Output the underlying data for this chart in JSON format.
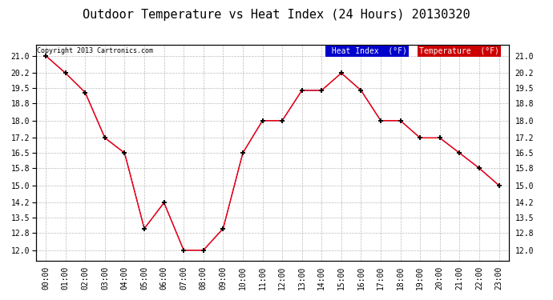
{
  "title": "Outdoor Temperature vs Heat Index (24 Hours) 20130320",
  "copyright": "Copyright 2013 Cartronics.com",
  "x_labels": [
    "00:00",
    "01:00",
    "02:00",
    "03:00",
    "04:00",
    "05:00",
    "06:00",
    "07:00",
    "08:00",
    "09:00",
    "10:00",
    "11:00",
    "12:00",
    "13:00",
    "14:00",
    "15:00",
    "16:00",
    "17:00",
    "18:00",
    "19:00",
    "20:00",
    "21:00",
    "22:00",
    "23:00"
  ],
  "temperature": [
    21.0,
    20.2,
    19.3,
    17.2,
    16.5,
    13.0,
    14.2,
    12.0,
    12.0,
    13.0,
    16.5,
    18.0,
    18.0,
    19.4,
    19.4,
    20.2,
    19.4,
    18.0,
    18.0,
    17.2,
    17.2,
    16.5,
    15.8,
    15.0
  ],
  "heat_index": [
    21.0,
    20.2,
    19.3,
    17.2,
    16.5,
    13.0,
    14.2,
    12.0,
    12.0,
    13.0,
    16.5,
    18.0,
    18.0,
    19.4,
    19.4,
    20.2,
    19.4,
    18.0,
    18.0,
    17.2,
    17.2,
    16.5,
    15.8,
    15.0
  ],
  "ylim": [
    11.5,
    21.5
  ],
  "yticks": [
    12.0,
    12.8,
    13.5,
    14.2,
    15.0,
    15.8,
    16.5,
    17.2,
    18.0,
    18.8,
    19.5,
    20.2,
    21.0
  ],
  "temp_color": "#ff0000",
  "heat_index_color": "#0000cc",
  "background_color": "#ffffff",
  "grid_color": "#bbbbbb",
  "title_fontsize": 11,
  "tick_fontsize": 7,
  "legend_heat_index_bg": "#0000cc",
  "legend_temp_bg": "#cc0000",
  "legend_text_color": "#ffffff",
  "copyright_fontsize": 6
}
